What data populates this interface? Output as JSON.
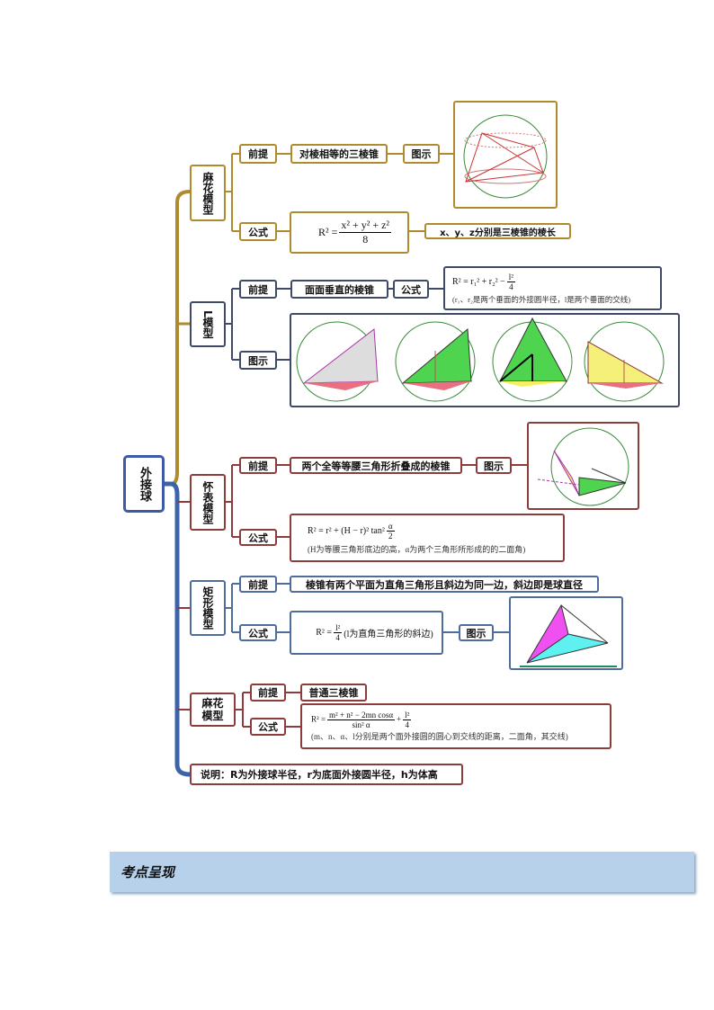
{
  "root": {
    "label": "外接球"
  },
  "colors": {
    "gold": "#b08a2e",
    "navy": "#3f4a66",
    "red": "#8e3b3b",
    "blue": "#4f6d9a",
    "banner": "#b7d1ea"
  },
  "branches": [
    {
      "title": "麻花模型",
      "premise_label": "前提",
      "premise": "对棱相等的三棱锥",
      "figure_label": "图示",
      "formula_label": "公式",
      "formula": {
        "lhs": "R²  =",
        "num": "x² + y² + z²",
        "den": "8"
      },
      "note": "x、y、z分别是三棱锥的棱长"
    },
    {
      "title": "L模型",
      "premise_label": "前提",
      "premise": "面面垂直的棱锥",
      "formula_label": "公式",
      "figure_label": "图示",
      "formula": {
        "lhs": "R² = r₁² + r₂² −",
        "num": "l²",
        "den": "4"
      },
      "note": "(r₁、r₂是两个垂面的外接圆半径，l是两个垂面的交线)"
    },
    {
      "title": "怀表模型",
      "premise_label": "前提",
      "premise": "两个全等等腰三角形折叠成的棱锥",
      "figure_label": "图示",
      "formula_label": "公式",
      "formula": {
        "lhs": "R² = r² + (H − r)² tan²",
        "num": "α",
        "den": "2"
      },
      "note": "(H为等腰三角形底边的高，α为两个三角形所形成的的二面角)"
    },
    {
      "title": "矩形模型",
      "premise_label": "前提",
      "premise": "棱锥有两个平面为直角三角形且斜边为同一边，斜边即是球直径",
      "formula_label": "公式",
      "figure_label": "图示",
      "formula": {
        "lhs": "R² =",
        "num": "l²",
        "den": "4",
        "tail": "(l为直角三角形的斜边)"
      }
    },
    {
      "title": "麻花模型",
      "premise_label": "前提",
      "premise": "普通三棱锥",
      "formula_label": "公式",
      "formula": {
        "lhs": "R² =",
        "num": "m² + n² − 2mn cosα",
        "den": "sin² α",
        "plus": "+",
        "num2": "l²",
        "den2": "4"
      },
      "note": "(m、n、α、l分别是两个面外接圆的圆心到交线的距离，二面角，其交线)"
    }
  ],
  "explanation": "说明：R为外接球半径，r为底面外接圆半径，h为体高",
  "banner": {
    "title": "考点呈现"
  }
}
